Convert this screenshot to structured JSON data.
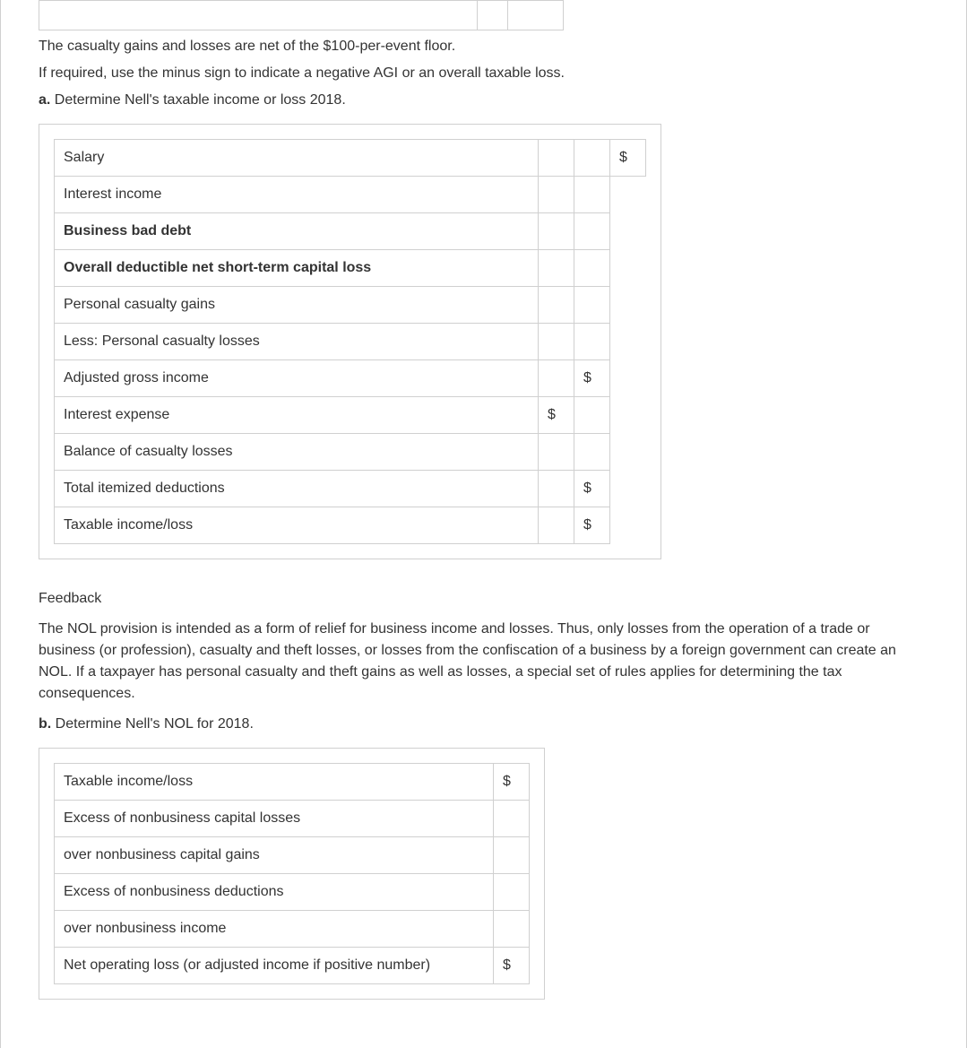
{
  "intro": {
    "line1": "The casualty gains and losses are net of the $100-per-event floor.",
    "line2": "If required, use the minus sign to indicate a negative AGI or an overall taxable loss."
  },
  "partA": {
    "lead": "a.",
    "text": " Determine Nell's taxable income or loss 2018.",
    "rows": [
      {
        "label": "Salary",
        "bold": false,
        "c1": "",
        "c2": "",
        "c3": "$"
      },
      {
        "label": "Interest income",
        "bold": false,
        "c1": "",
        "c2": "",
        "c3": null
      },
      {
        "label": "Business bad debt",
        "bold": true,
        "c1": "",
        "c2": "",
        "c3": null
      },
      {
        "label": "Overall deductible net short-term capital loss",
        "bold": true,
        "c1": "",
        "c2": "",
        "c3": null
      },
      {
        "label": "Personal casualty gains",
        "bold": false,
        "c1": "",
        "c2": "",
        "c3": null
      },
      {
        "label": "Less: Personal casualty losses",
        "bold": false,
        "c1": "",
        "c2": "",
        "c3": null
      },
      {
        "label": "Adjusted gross income",
        "bold": false,
        "c1": "",
        "c2": "$",
        "c3": null
      },
      {
        "label": "Interest expense",
        "bold": false,
        "c1": "$",
        "c2": "",
        "c3": null
      },
      {
        "label": "Balance of casualty losses",
        "bold": false,
        "c1": "",
        "c2": "",
        "c3": null
      },
      {
        "label": "Total itemized deductions",
        "bold": false,
        "c1": "",
        "c2": "$",
        "c3": null
      },
      {
        "label": "Taxable income/loss",
        "bold": false,
        "c1": "",
        "c2": "$",
        "c3": null
      }
    ]
  },
  "feedback": {
    "heading": "Feedback",
    "text": "The NOL provision is intended as a form of relief for business income and losses. Thus, only losses from the operation of a trade or business (or profession), casualty and theft losses, or losses from the confiscation of a business by a foreign government can create an NOL. If a taxpayer has personal casualty and theft gains as well as losses, a special set of rules applies for determining the tax consequences."
  },
  "partB": {
    "lead": "b.",
    "text": " Determine Nell's NOL for 2018.",
    "rows": [
      {
        "label": "Taxable income/loss",
        "c1": "$"
      },
      {
        "label": "Excess of nonbusiness capital losses",
        "c1": ""
      },
      {
        "label": "over nonbusiness capital gains",
        "c1": ""
      },
      {
        "label": "Excess of nonbusiness deductions",
        "c1": ""
      },
      {
        "label": "over nonbusiness income",
        "c1": ""
      },
      {
        "label": "Net operating loss (or adjusted income if positive number)",
        "c1": "$"
      }
    ]
  }
}
